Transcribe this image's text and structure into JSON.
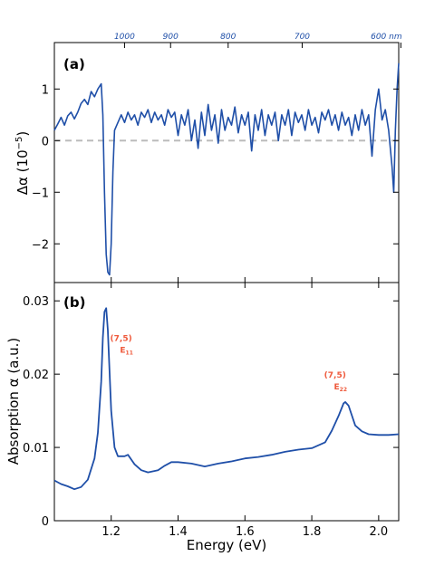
{
  "chart_data": [
    {
      "type": "line",
      "panel_label": "(a)",
      "ylabel_main": "Δα (10",
      "ylabel_exp": "−5",
      "ylabel_close": ")",
      "xlim": [
        1.03,
        2.06
      ],
      "ylim": [
        -2.75,
        1.9
      ],
      "yticks": [
        {
          "v": 1,
          "label": "1"
        },
        {
          "v": 0,
          "label": "0"
        },
        {
          "v": -1,
          "label": "−1"
        },
        {
          "v": -2,
          "label": "−2"
        }
      ],
      "top_axis": {
        "unit": "nm",
        "ticks": [
          {
            "nm": 1000,
            "label": "1000"
          },
          {
            "nm": 900,
            "label": "900"
          },
          {
            "nm": 800,
            "label": "800"
          },
          {
            "nm": 700,
            "label": "700"
          },
          {
            "nm": 600,
            "label": "600 nm"
          }
        ]
      },
      "reference_line": {
        "y": 0,
        "style": "dashed",
        "color": "#bbbbbb"
      },
      "series": [
        {
          "color": "#1f4fa8",
          "points": [
            [
              1.03,
              0.2
            ],
            [
              1.04,
              0.32
            ],
            [
              1.05,
              0.45
            ],
            [
              1.06,
              0.3
            ],
            [
              1.07,
              0.48
            ],
            [
              1.08,
              0.55
            ],
            [
              1.09,
              0.42
            ],
            [
              1.1,
              0.55
            ],
            [
              1.11,
              0.72
            ],
            [
              1.12,
              0.8
            ],
            [
              1.13,
              0.7
            ],
            [
              1.14,
              0.95
            ],
            [
              1.15,
              0.85
            ],
            [
              1.16,
              1.0
            ],
            [
              1.17,
              1.1
            ],
            [
              1.175,
              0.5
            ],
            [
              1.18,
              -1.0
            ],
            [
              1.185,
              -2.2
            ],
            [
              1.19,
              -2.55
            ],
            [
              1.195,
              -2.6
            ],
            [
              1.2,
              -2.0
            ],
            [
              1.205,
              -0.6
            ],
            [
              1.21,
              0.2
            ],
            [
              1.22,
              0.35
            ],
            [
              1.23,
              0.5
            ],
            [
              1.24,
              0.35
            ],
            [
              1.25,
              0.55
            ],
            [
              1.26,
              0.4
            ],
            [
              1.27,
              0.5
            ],
            [
              1.28,
              0.3
            ],
            [
              1.29,
              0.55
            ],
            [
              1.3,
              0.45
            ],
            [
              1.31,
              0.6
            ],
            [
              1.32,
              0.35
            ],
            [
              1.33,
              0.55
            ],
            [
              1.34,
              0.4
            ],
            [
              1.35,
              0.5
            ],
            [
              1.36,
              0.3
            ],
            [
              1.37,
              0.6
            ],
            [
              1.38,
              0.45
            ],
            [
              1.39,
              0.55
            ],
            [
              1.4,
              0.1
            ],
            [
              1.41,
              0.5
            ],
            [
              1.42,
              0.3
            ],
            [
              1.43,
              0.6
            ],
            [
              1.44,
              0.0
            ],
            [
              1.45,
              0.4
            ],
            [
              1.46,
              -0.15
            ],
            [
              1.47,
              0.55
            ],
            [
              1.48,
              0.1
            ],
            [
              1.49,
              0.7
            ],
            [
              1.5,
              0.2
            ],
            [
              1.51,
              0.5
            ],
            [
              1.52,
              -0.05
            ],
            [
              1.53,
              0.6
            ],
            [
              1.54,
              0.2
            ],
            [
              1.55,
              0.45
            ],
            [
              1.56,
              0.3
            ],
            [
              1.57,
              0.65
            ],
            [
              1.58,
              0.15
            ],
            [
              1.59,
              0.5
            ],
            [
              1.6,
              0.3
            ],
            [
              1.61,
              0.55
            ],
            [
              1.62,
              -0.2
            ],
            [
              1.63,
              0.5
            ],
            [
              1.64,
              0.2
            ],
            [
              1.65,
              0.6
            ],
            [
              1.66,
              0.1
            ],
            [
              1.67,
              0.5
            ],
            [
              1.68,
              0.3
            ],
            [
              1.69,
              0.55
            ],
            [
              1.7,
              0.0
            ],
            [
              1.71,
              0.5
            ],
            [
              1.72,
              0.3
            ],
            [
              1.73,
              0.6
            ],
            [
              1.74,
              0.1
            ],
            [
              1.75,
              0.55
            ],
            [
              1.76,
              0.35
            ],
            [
              1.77,
              0.5
            ],
            [
              1.78,
              0.2
            ],
            [
              1.79,
              0.6
            ],
            [
              1.8,
              0.3
            ],
            [
              1.81,
              0.45
            ],
            [
              1.82,
              0.15
            ],
            [
              1.83,
              0.55
            ],
            [
              1.84,
              0.4
            ],
            [
              1.85,
              0.6
            ],
            [
              1.86,
              0.3
            ],
            [
              1.87,
              0.5
            ],
            [
              1.88,
              0.2
            ],
            [
              1.89,
              0.55
            ],
            [
              1.9,
              0.3
            ],
            [
              1.91,
              0.45
            ],
            [
              1.92,
              0.1
            ],
            [
              1.93,
              0.5
            ],
            [
              1.94,
              0.2
            ],
            [
              1.95,
              0.6
            ],
            [
              1.96,
              0.3
            ],
            [
              1.97,
              0.5
            ],
            [
              1.98,
              -0.3
            ],
            [
              1.99,
              0.6
            ],
            [
              2.0,
              1.0
            ],
            [
              2.01,
              0.4
            ],
            [
              2.02,
              0.6
            ],
            [
              2.03,
              0.2
            ],
            [
              2.04,
              -0.5
            ],
            [
              2.045,
              -1.0
            ],
            [
              2.05,
              0.2
            ],
            [
              2.055,
              1.0
            ],
            [
              2.06,
              1.5
            ]
          ]
        }
      ]
    },
    {
      "type": "line",
      "panel_label": "(b)",
      "xlabel": "Energy (eV)",
      "ylabel": "Absorption α (a.u.)",
      "xlim": [
        1.03,
        2.06
      ],
      "ylim": [
        0,
        0.0325
      ],
      "xticks": [
        {
          "v": 1.2,
          "label": "1.2"
        },
        {
          "v": 1.4,
          "label": "1.4"
        },
        {
          "v": 1.6,
          "label": "1.6"
        },
        {
          "v": 1.8,
          "label": "1.8"
        },
        {
          "v": 2.0,
          "label": "2.0"
        }
      ],
      "yticks": [
        {
          "v": 0,
          "label": "0"
        },
        {
          "v": 0.01,
          "label": "0.01"
        },
        {
          "v": 0.02,
          "label": "0.02"
        },
        {
          "v": 0.03,
          "label": "0.03"
        }
      ],
      "annotations": [
        {
          "line1": "(7,5)",
          "main": "E",
          "sub": "11",
          "x": 1.235,
          "y": 0.0245
        },
        {
          "line1": "(7,5)",
          "main": "E",
          "sub": "22",
          "x": 1.875,
          "y": 0.0195
        }
      ],
      "series": [
        {
          "color": "#1f4fa8",
          "points": [
            [
              1.03,
              0.0055
            ],
            [
              1.05,
              0.005
            ],
            [
              1.07,
              0.0047
            ],
            [
              1.09,
              0.0043
            ],
            [
              1.11,
              0.0046
            ],
            [
              1.13,
              0.0056
            ],
            [
              1.15,
              0.0085
            ],
            [
              1.16,
              0.012
            ],
            [
              1.17,
              0.019
            ],
            [
              1.175,
              0.025
            ],
            [
              1.18,
              0.0285
            ],
            [
              1.185,
              0.029
            ],
            [
              1.19,
              0.026
            ],
            [
              1.2,
              0.015
            ],
            [
              1.21,
              0.01
            ],
            [
              1.22,
              0.0088
            ],
            [
              1.24,
              0.0088
            ],
            [
              1.25,
              0.009
            ],
            [
              1.27,
              0.0077
            ],
            [
              1.29,
              0.0069
            ],
            [
              1.31,
              0.0066
            ],
            [
              1.34,
              0.0069
            ],
            [
              1.36,
              0.0075
            ],
            [
              1.38,
              0.008
            ],
            [
              1.4,
              0.008
            ],
            [
              1.44,
              0.0078
            ],
            [
              1.48,
              0.0074
            ],
            [
              1.52,
              0.0078
            ],
            [
              1.56,
              0.0081
            ],
            [
              1.6,
              0.0085
            ],
            [
              1.64,
              0.0087
            ],
            [
              1.68,
              0.009
            ],
            [
              1.72,
              0.0094
            ],
            [
              1.76,
              0.0097
            ],
            [
              1.8,
              0.0099
            ],
            [
              1.84,
              0.0107
            ],
            [
              1.86,
              0.0123
            ],
            [
              1.88,
              0.0143
            ],
            [
              1.895,
              0.016
            ],
            [
              1.9,
              0.0162
            ],
            [
              1.91,
              0.0157
            ],
            [
              1.93,
              0.013
            ],
            [
              1.95,
              0.0122
            ],
            [
              1.97,
              0.0118
            ],
            [
              2.0,
              0.0117
            ],
            [
              2.03,
              0.0117
            ],
            [
              2.06,
              0.0118
            ]
          ]
        }
      ]
    }
  ]
}
